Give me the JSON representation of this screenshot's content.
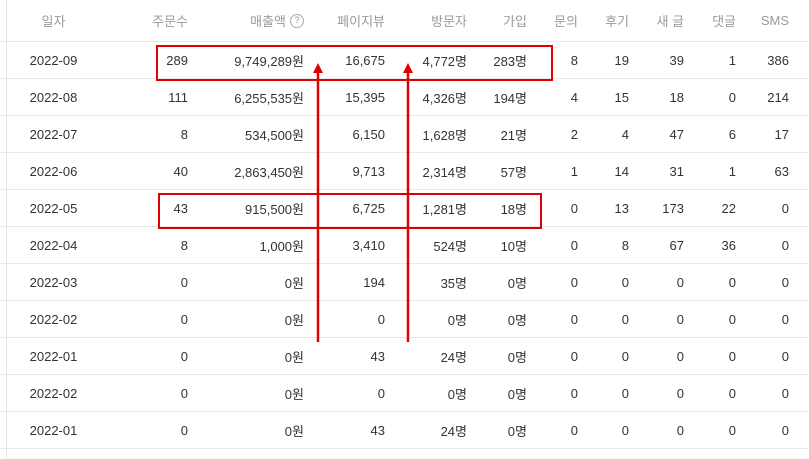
{
  "headers": [
    "일자",
    "주문수",
    "매출액",
    "페이지뷰",
    "방문자",
    "가입",
    "문의",
    "후기",
    "새 글",
    "댓글",
    "SMS"
  ],
  "help_icon_glyph": "?",
  "rows": [
    [
      "2022-09",
      "289",
      "9,749,289원",
      "16,675",
      "4,772명",
      "283명",
      "8",
      "19",
      "39",
      "1",
      "386"
    ],
    [
      "2022-08",
      "111",
      "6,255,535원",
      "15,395",
      "4,326명",
      "194명",
      "4",
      "15",
      "18",
      "0",
      "214"
    ],
    [
      "2022-07",
      "8",
      "534,500원",
      "6,150",
      "1,628명",
      "21명",
      "2",
      "4",
      "47",
      "6",
      "17"
    ],
    [
      "2022-06",
      "40",
      "2,863,450원",
      "9,713",
      "2,314명",
      "57명",
      "1",
      "14",
      "31",
      "1",
      "63"
    ],
    [
      "2022-05",
      "43",
      "915,500원",
      "6,725",
      "1,281명",
      "18명",
      "0",
      "13",
      "173",
      "22",
      "0"
    ],
    [
      "2022-04",
      "8",
      "1,000원",
      "3,410",
      "524명",
      "10명",
      "0",
      "8",
      "67",
      "36",
      "0"
    ],
    [
      "2022-03",
      "0",
      "0원",
      "194",
      "35명",
      "0명",
      "0",
      "0",
      "0",
      "0",
      "0"
    ],
    [
      "2022-02",
      "0",
      "0원",
      "0",
      "0명",
      "0명",
      "0",
      "0",
      "0",
      "0",
      "0"
    ],
    [
      "2022-01",
      "0",
      "0원",
      "43",
      "24명",
      "0명",
      "0",
      "0",
      "0",
      "0",
      "0"
    ],
    [
      "2022-02",
      "0",
      "0원",
      "0",
      "0명",
      "0명",
      "0",
      "0",
      "0",
      "0",
      "0"
    ],
    [
      "2022-01",
      "0",
      "0원",
      "43",
      "24명",
      "0명",
      "0",
      "0",
      "0",
      "0",
      "0"
    ]
  ],
  "annotation_color": "#e00000",
  "highlighted_months": [
    "2022-09",
    "2022-05"
  ]
}
